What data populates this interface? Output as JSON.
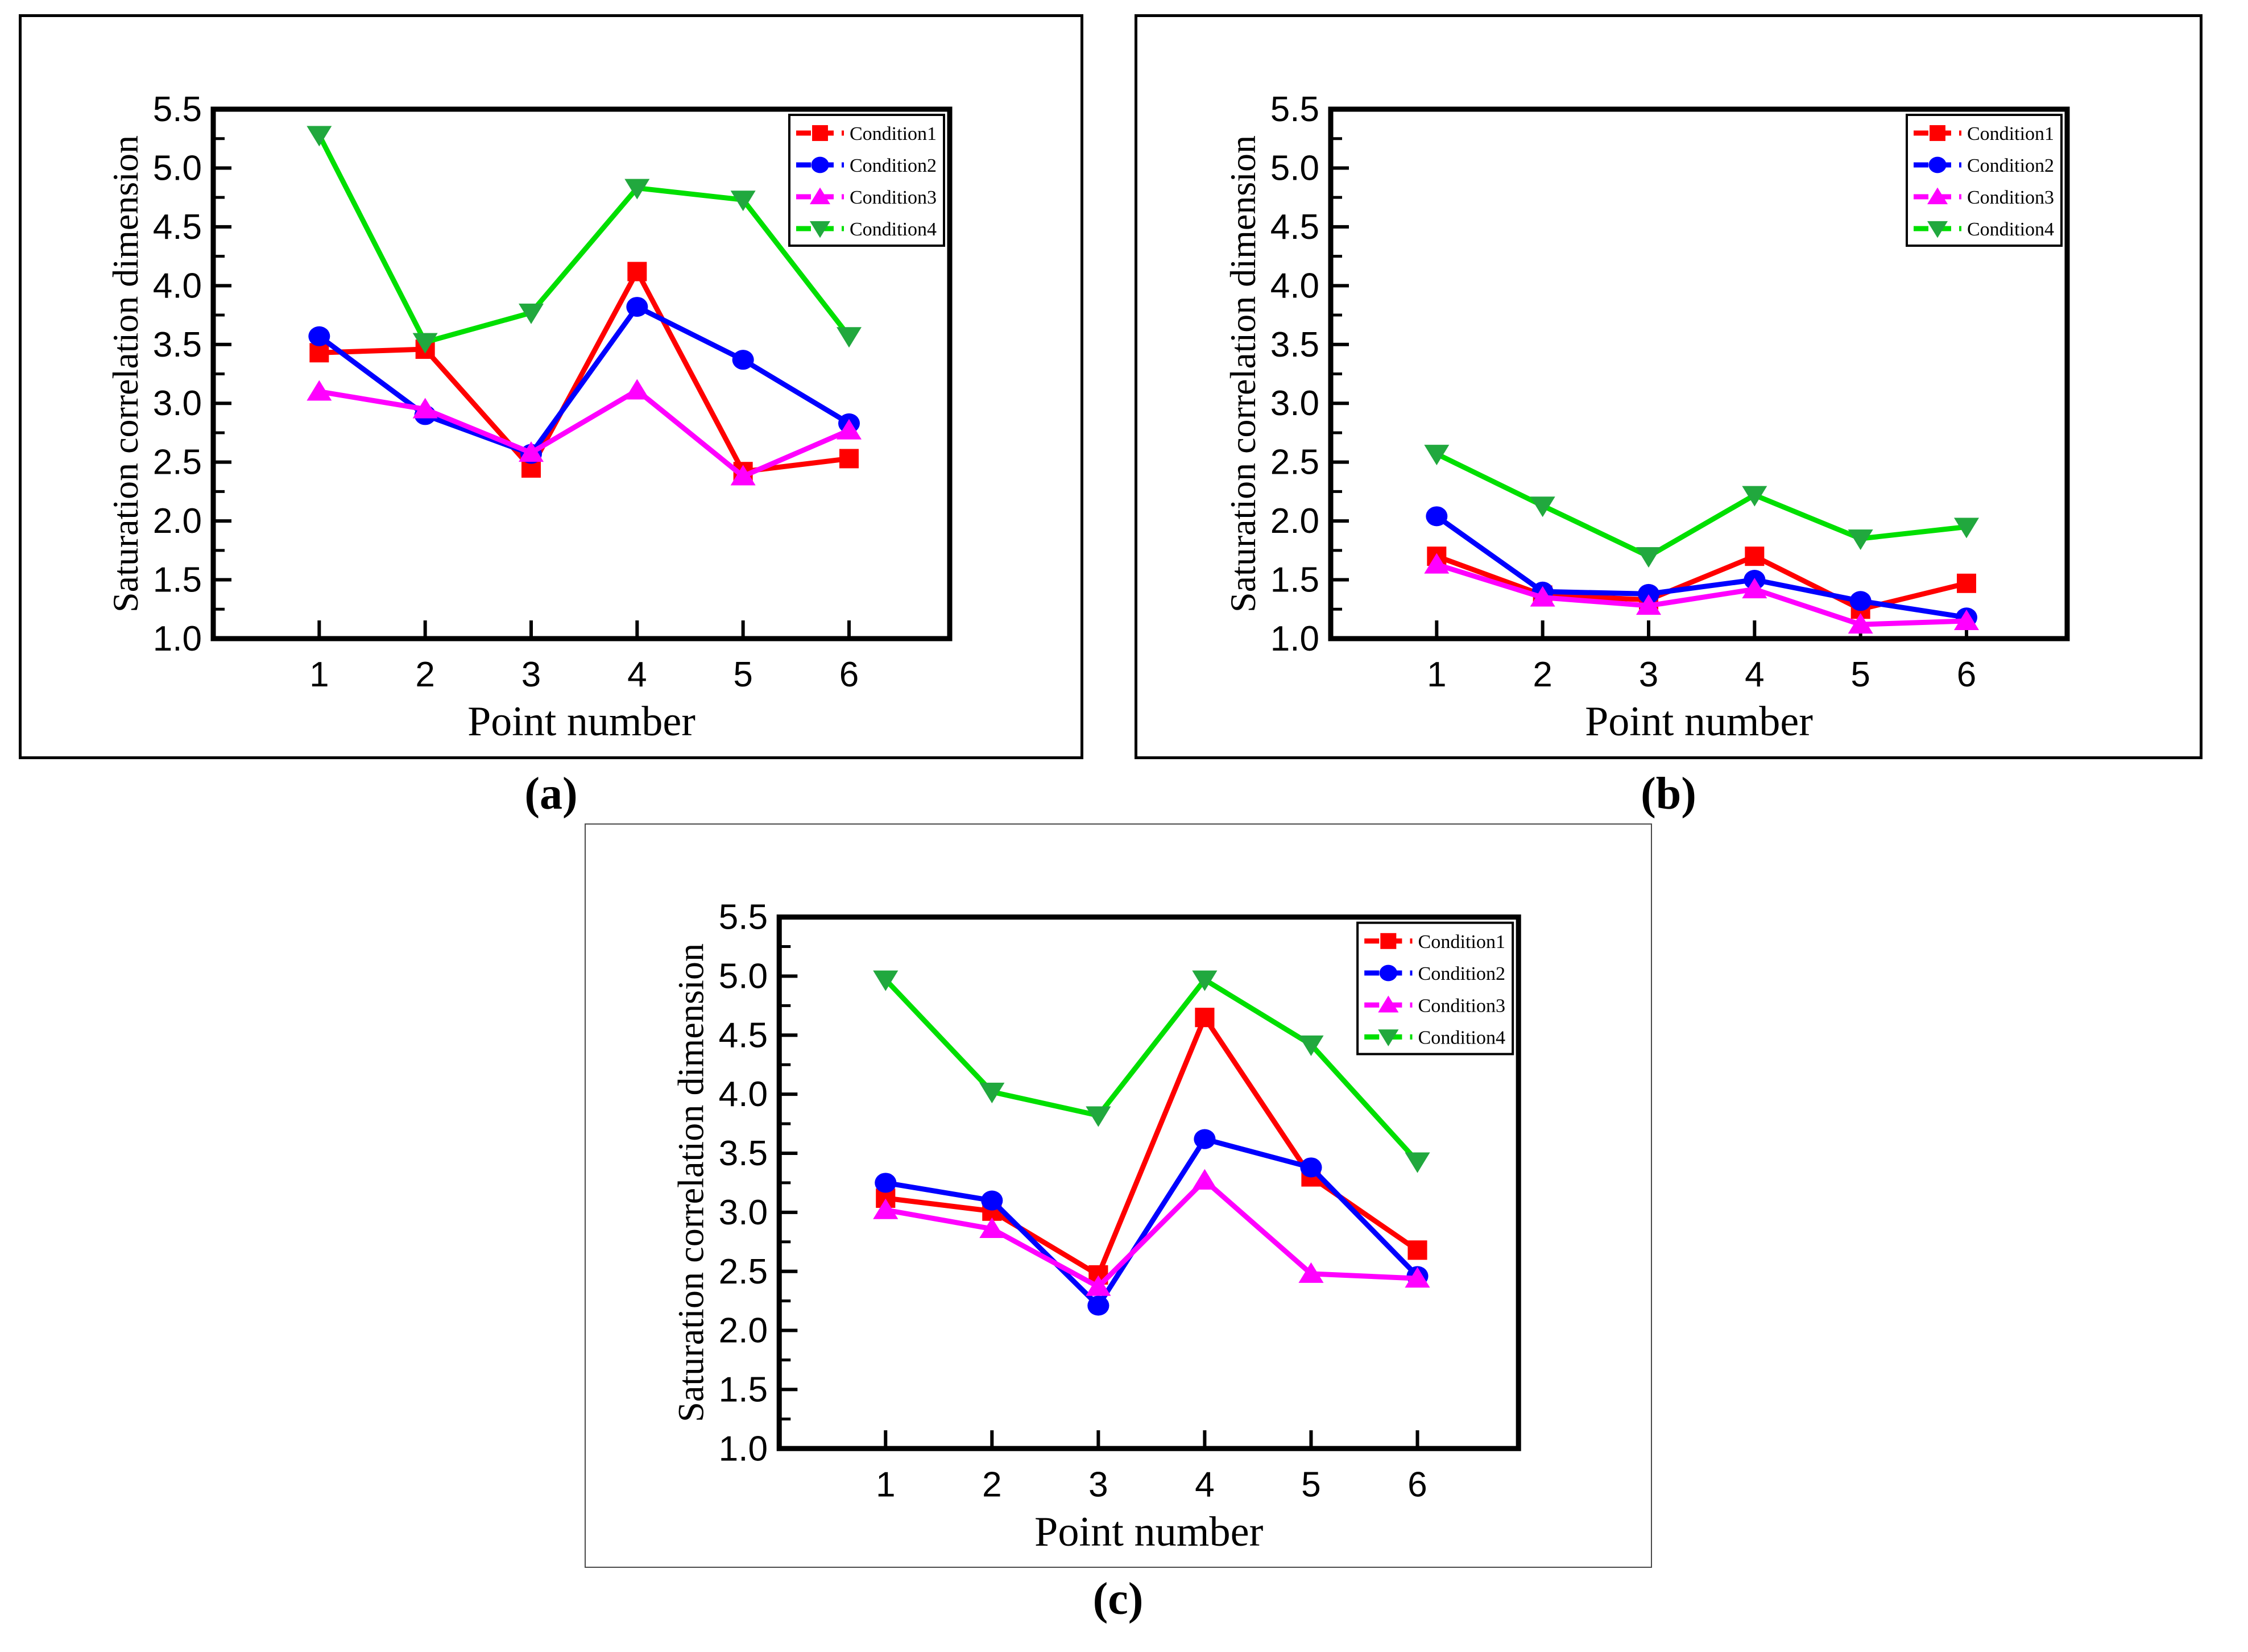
{
  "figure": {
    "captions": [
      "(a)",
      "(b)",
      "(c)"
    ]
  },
  "palette": {
    "condition1": "#FF0000",
    "condition2": "#0000FF",
    "condition3": "#FF00FF",
    "condition4_line": "#00DF00",
    "condition4_marker": "#21A83E",
    "axis": "#000000",
    "background": "#FFFFFF"
  },
  "chart_data": [
    {
      "type": "line",
      "panel": "a",
      "title": "",
      "xlabel": "Point number",
      "ylabel": "Saturation correlation dimension",
      "x": [
        1,
        2,
        3,
        4,
        5,
        6
      ],
      "x_ticks": [
        "1",
        "2",
        "3",
        "4",
        "5",
        "6"
      ],
      "y_ticks": [
        "1.0",
        "1.5",
        "2.0",
        "2.5",
        "3.0",
        "3.5",
        "4.0",
        "4.5",
        "5.0",
        "5.5"
      ],
      "xlim": [
        0,
        6.95
      ],
      "ylim": [
        1.0,
        5.5
      ],
      "y_major_step": 0.5,
      "y_minor_step": 0.25,
      "grid": false,
      "legend_position": "top-right",
      "legend": [
        "Condition1",
        "Condition2",
        "Condition3",
        "Condition4"
      ],
      "series": [
        {
          "name": "Condition1",
          "marker": "square",
          "line_color": "#FF0000",
          "marker_color": "#FF0000",
          "values": [
            3.43,
            3.46,
            2.45,
            4.12,
            2.42,
            2.53
          ]
        },
        {
          "name": "Condition2",
          "marker": "circle",
          "line_color": "#0000FF",
          "marker_color": "#0000FF",
          "values": [
            3.57,
            2.9,
            2.57,
            3.82,
            3.37,
            2.83
          ]
        },
        {
          "name": "Condition3",
          "marker": "triangle-up",
          "line_color": "#FF00FF",
          "marker_color": "#FF00FF",
          "values": [
            3.1,
            2.95,
            2.58,
            3.11,
            2.38,
            2.77
          ]
        },
        {
          "name": "Condition4",
          "marker": "triangle-down",
          "line_color": "#00DF00",
          "marker_color": "#21A83E",
          "values": [
            5.28,
            3.52,
            3.77,
            4.83,
            4.73,
            3.57
          ]
        }
      ]
    },
    {
      "type": "line",
      "panel": "b",
      "title": "",
      "xlabel": "Point number",
      "ylabel": "Saturation correlation dimension",
      "x": [
        1,
        2,
        3,
        4,
        5,
        6
      ],
      "x_ticks": [
        "1",
        "2",
        "3",
        "4",
        "5",
        "6"
      ],
      "y_ticks": [
        "1.0",
        "1.5",
        "2.0",
        "2.5",
        "3.0",
        "3.5",
        "4.0",
        "4.5",
        "5.0",
        "5.5"
      ],
      "xlim": [
        0,
        6.95
      ],
      "ylim": [
        1.0,
        5.5
      ],
      "y_major_step": 0.5,
      "y_minor_step": 0.25,
      "grid": false,
      "legend_position": "top-right",
      "legend": [
        "Condition1",
        "Condition2",
        "Condition3",
        "Condition4"
      ],
      "series": [
        {
          "name": "Condition1",
          "marker": "square",
          "line_color": "#FF0000",
          "marker_color": "#FF0000",
          "values": [
            1.7,
            1.37,
            1.33,
            1.7,
            1.25,
            1.47
          ]
        },
        {
          "name": "Condition2",
          "marker": "circle",
          "line_color": "#0000FF",
          "marker_color": "#0000FF",
          "values": [
            2.04,
            1.4,
            1.38,
            1.5,
            1.32,
            1.18
          ]
        },
        {
          "name": "Condition3",
          "marker": "triangle-up",
          "line_color": "#FF00FF",
          "marker_color": "#FF00FF",
          "values": [
            1.63,
            1.35,
            1.28,
            1.42,
            1.12,
            1.15
          ]
        },
        {
          "name": "Condition4",
          "marker": "triangle-down",
          "line_color": "#00DF00",
          "marker_color": "#21A83E",
          "values": [
            2.57,
            2.13,
            1.7,
            2.22,
            1.85,
            1.95
          ]
        }
      ]
    },
    {
      "type": "line",
      "panel": "c",
      "title": "",
      "xlabel": "Point number",
      "ylabel": "Saturation correlation dimension",
      "x": [
        1,
        2,
        3,
        4,
        5,
        6
      ],
      "x_ticks": [
        "1",
        "2",
        "3",
        "4",
        "5",
        "6"
      ],
      "y_ticks": [
        "1.0",
        "1.5",
        "2.0",
        "2.5",
        "3.0",
        "3.5",
        "4.0",
        "4.5",
        "5.0",
        "5.5"
      ],
      "xlim": [
        0,
        6.95
      ],
      "ylim": [
        1.0,
        5.5
      ],
      "y_major_step": 0.5,
      "y_minor_step": 0.25,
      "grid": false,
      "legend_position": "top-right",
      "legend": [
        "Condition1",
        "Condition2",
        "Condition3",
        "Condition4"
      ],
      "series": [
        {
          "name": "Condition1",
          "marker": "square",
          "line_color": "#FF0000",
          "marker_color": "#FF0000",
          "values": [
            3.12,
            3.01,
            2.47,
            4.65,
            3.3,
            2.68
          ]
        },
        {
          "name": "Condition2",
          "marker": "circle",
          "line_color": "#0000FF",
          "marker_color": "#0000FF",
          "values": [
            3.25,
            3.1,
            2.21,
            3.62,
            3.38,
            2.46
          ]
        },
        {
          "name": "Condition3",
          "marker": "triangle-up",
          "line_color": "#FF00FF",
          "marker_color": "#FF00FF",
          "values": [
            3.02,
            2.86,
            2.37,
            3.27,
            2.48,
            2.44
          ]
        },
        {
          "name": "Condition4",
          "marker": "triangle-down",
          "line_color": "#00DF00",
          "marker_color": "#21A83E",
          "values": [
            4.97,
            4.02,
            3.82,
            4.97,
            4.42,
            3.43
          ]
        }
      ]
    }
  ]
}
